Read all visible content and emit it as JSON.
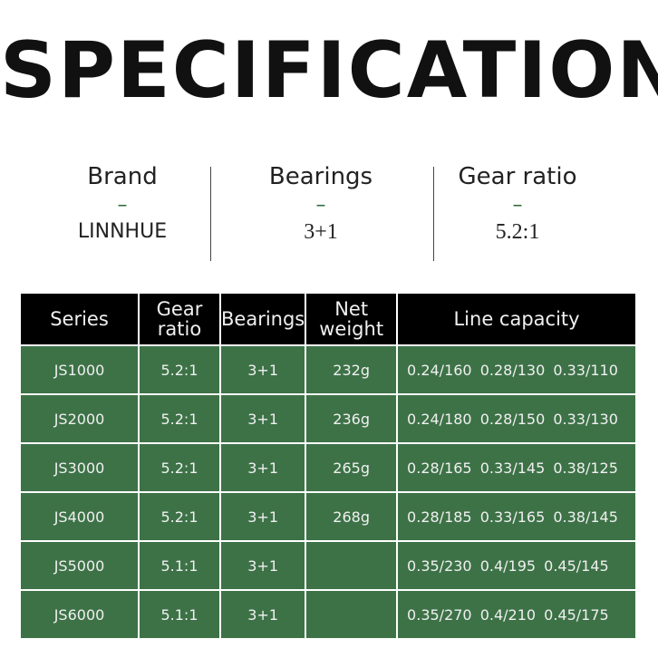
{
  "title": "SPECIFICATION",
  "specs": [
    {
      "label": "Brand",
      "dash": "–",
      "value": "LINNHUE"
    },
    {
      "label": "Bearings",
      "dash": "–",
      "value": "3+1"
    },
    {
      "label": "Gear ratio",
      "dash": "–",
      "value": "5.2:1"
    }
  ],
  "table": {
    "headers": [
      "Series",
      "Gear ratio",
      "Bearings",
      "Net weight",
      "Line capacity"
    ],
    "rows": [
      [
        "JS1000",
        "5.2:1",
        "3+1",
        "232g",
        "0.24/160 0.28/130 0.33/110"
      ],
      [
        "JS2000",
        "5.2:1",
        "3+1",
        "236g",
        "0.24/180 0.28/150 0.33/130"
      ],
      [
        "JS3000",
        "5.2:1",
        "3+1",
        "265g",
        "0.28/165 0.33/145 0.38/125"
      ],
      [
        "JS4000",
        "5.2:1",
        "3+1",
        "268g",
        "0.28/185 0.33/165 0.38/145"
      ],
      [
        "JS5000",
        "5.1:1",
        "3+1",
        "",
        "0.35/230 0.4/195 0.45/145"
      ],
      [
        "JS6000",
        "5.1:1",
        "3+1",
        "",
        "0.35/270 0.4/210 0.45/175"
      ]
    ]
  }
}
